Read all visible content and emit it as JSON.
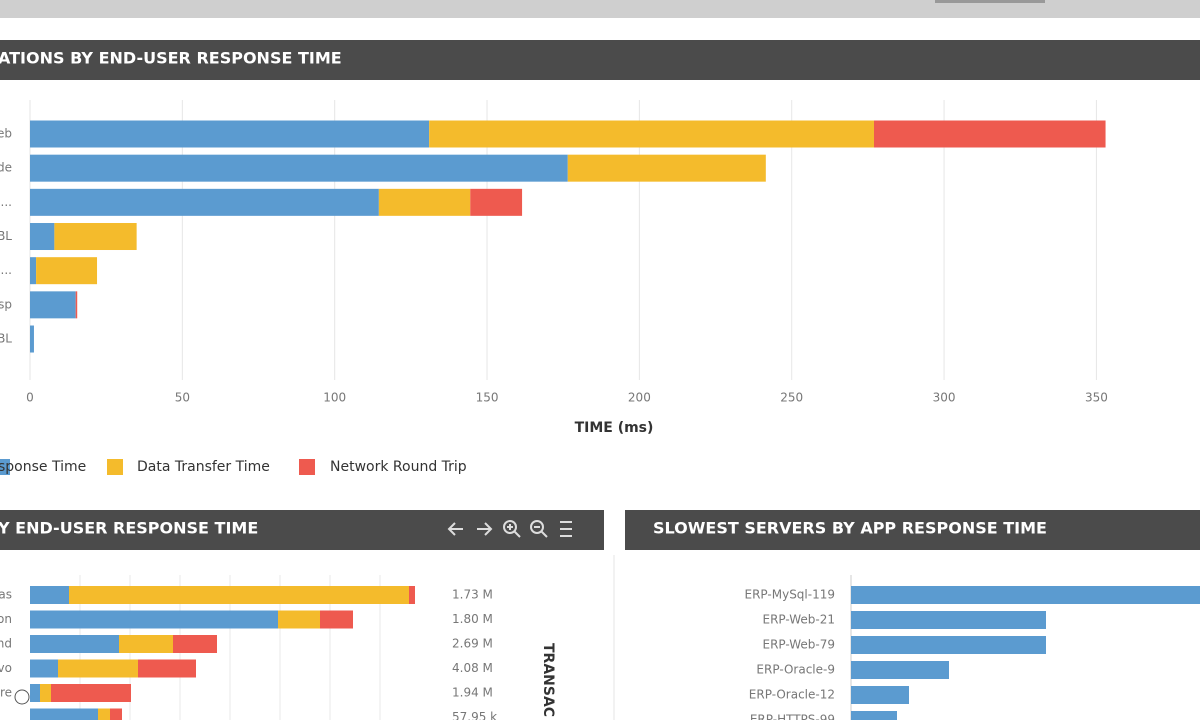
{
  "chart_data": [
    {
      "type": "bar",
      "orientation": "horizontal",
      "stacked": true,
      "title": "ATIONS BY END-USER RESPONSE TIME",
      "xlabel": "TIME (ms)",
      "categories": [
        "eb",
        "de",
        "...",
        "BL",
        "...",
        "sp",
        "BL"
      ],
      "series": [
        {
          "name": "sponse Time",
          "color": "#5b9bd0",
          "values": [
            131,
            176.5,
            114.5,
            8,
            2,
            15,
            1.3
          ]
        },
        {
          "name": "Data Transfer Time",
          "color": "#f4bb2c",
          "values": [
            146,
            65,
            30,
            27,
            20,
            null,
            null
          ]
        },
        {
          "name": "Network Round Trip",
          "color": "#ee5a4f",
          "values": [
            76,
            null,
            17,
            null,
            null,
            0.5,
            null
          ]
        }
      ],
      "xlim": [
        0,
        384
      ],
      "xticks": [
        0,
        50,
        100,
        150,
        200,
        250,
        300,
        350
      ],
      "grid": true,
      "legend": "bottom"
    },
    {
      "type": "bar",
      "orientation": "horizontal",
      "stacked": true,
      "title": "Y END-USER RESPONSE TIME",
      "right_axis_label": "TRANSAC",
      "categories": [
        "as",
        "on",
        "nd",
        "vo",
        "re",
        null
      ],
      "series": [
        {
          "color": "#5b9bd0",
          "values": [
            39,
            248,
            89,
            28,
            10,
            68
          ]
        },
        {
          "color": "#f4bb2c",
          "values": [
            340,
            42,
            54,
            80,
            11,
            12
          ]
        },
        {
          "color": "#ee5a4f",
          "values": [
            6,
            33,
            44,
            58,
            80,
            12
          ]
        }
      ],
      "transactions": [
        "1.73 M",
        "1.80 M",
        "2.69 M",
        "4.08 M",
        "1.94 M",
        "57.95 k"
      ],
      "xlim": [
        0,
        390
      ]
    },
    {
      "type": "bar",
      "orientation": "horizontal",
      "title": "SLOWEST SERVERS BY APP RESPONSE TIME",
      "categories": [
        "ERP-MySql-119",
        "ERP-Web-21",
        "ERP-Web-79",
        "ERP-Oracle-9",
        "ERP-Oracle-12",
        "ERP-HTTPS-99"
      ],
      "color": "#5b9bd0",
      "values": [
        349,
        195,
        195,
        98,
        58,
        46
      ],
      "xlim": [
        0,
        349
      ]
    }
  ]
}
